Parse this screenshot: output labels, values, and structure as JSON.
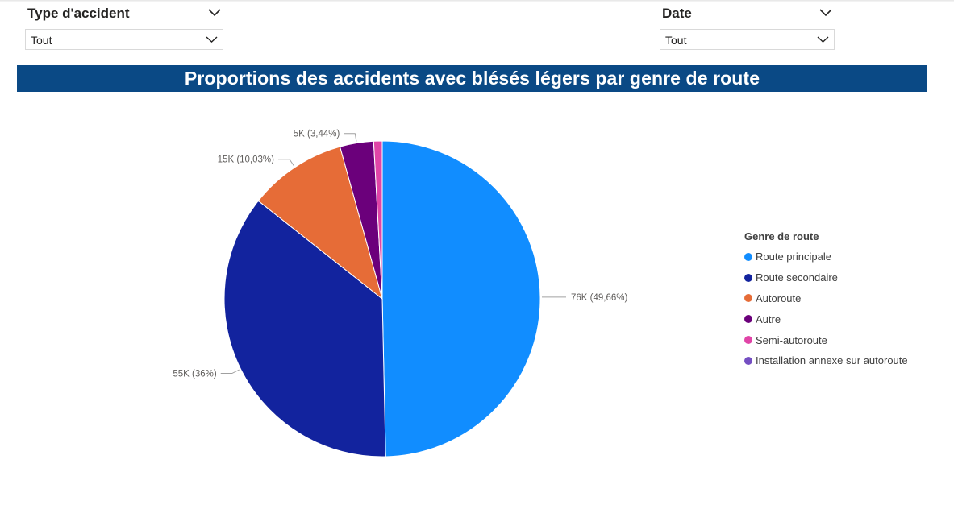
{
  "filters": [
    {
      "title": "Type d'accident",
      "value": "Tout"
    },
    {
      "title": "Date",
      "value": "Tout"
    }
  ],
  "chart_data": {
    "type": "pie",
    "title": "Proportions des accidents avec blésés légers par genre de route",
    "legend_title": "Genre de route",
    "legend_position": "right",
    "slices": [
      {
        "name": "Route principale",
        "value": 76,
        "percent": 49.66,
        "label": "76K (49,66%)",
        "color": "#118dff"
      },
      {
        "name": "Route secondaire",
        "value": 55,
        "percent": 36.0,
        "label": "55K (36%)",
        "color": "#12239e"
      },
      {
        "name": "Autoroute",
        "value": 15,
        "percent": 10.03,
        "label": "15K (10,03%)",
        "color": "#e66c37"
      },
      {
        "name": "Autre",
        "value": 5,
        "percent": 3.44,
        "label": "5K (3,44%)",
        "color": "#6b007b"
      },
      {
        "name": "Semi-autoroute",
        "value": 1,
        "percent": 0.87,
        "label": "",
        "color": "#e044a7"
      },
      {
        "name": "Installation annexe sur autoroute",
        "value": 0,
        "percent": 0.0,
        "label": "",
        "color": "#744ec2"
      }
    ]
  },
  "icons": {
    "dropdown": "chevron-down-icon",
    "legend_marker": "circle"
  }
}
